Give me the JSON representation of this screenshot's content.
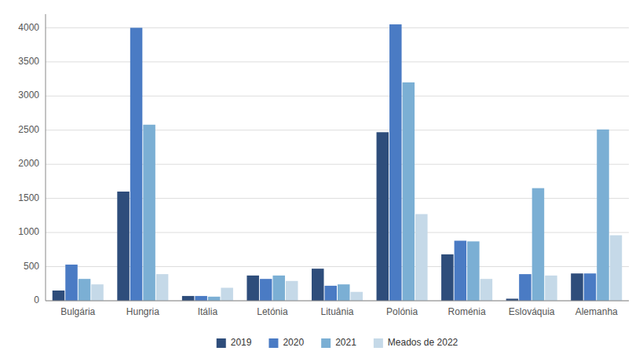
{
  "chart_data": {
    "type": "bar",
    "categories": [
      "Bulgária",
      "Hungria",
      "Itália",
      "Letónia",
      "Lituânia",
      "Polónia",
      "Roménia",
      "Eslováquia",
      "Alemanha"
    ],
    "series": [
      {
        "name": "2019",
        "color": "#2E4D7B",
        "values": [
          150,
          1600,
          70,
          370,
          470,
          2470,
          680,
          30,
          400
        ]
      },
      {
        "name": "2020",
        "color": "#4A7BC4",
        "values": [
          530,
          4000,
          70,
          320,
          220,
          4050,
          880,
          390,
          400
        ]
      },
      {
        "name": "2021",
        "color": "#7BAFD4",
        "values": [
          320,
          2580,
          60,
          370,
          240,
          3200,
          870,
          1650,
          2510
        ]
      },
      {
        "name": "Meados de 2022",
        "color": "#C5D9E8",
        "values": [
          240,
          390,
          190,
          290,
          130,
          1270,
          320,
          370,
          960
        ]
      }
    ],
    "ylim": [
      0,
      4200
    ],
    "yticks": [
      0,
      500,
      1000,
      1500,
      2000,
      2500,
      3000,
      3500,
      4000
    ],
    "grid": true,
    "legend": "bottom"
  }
}
